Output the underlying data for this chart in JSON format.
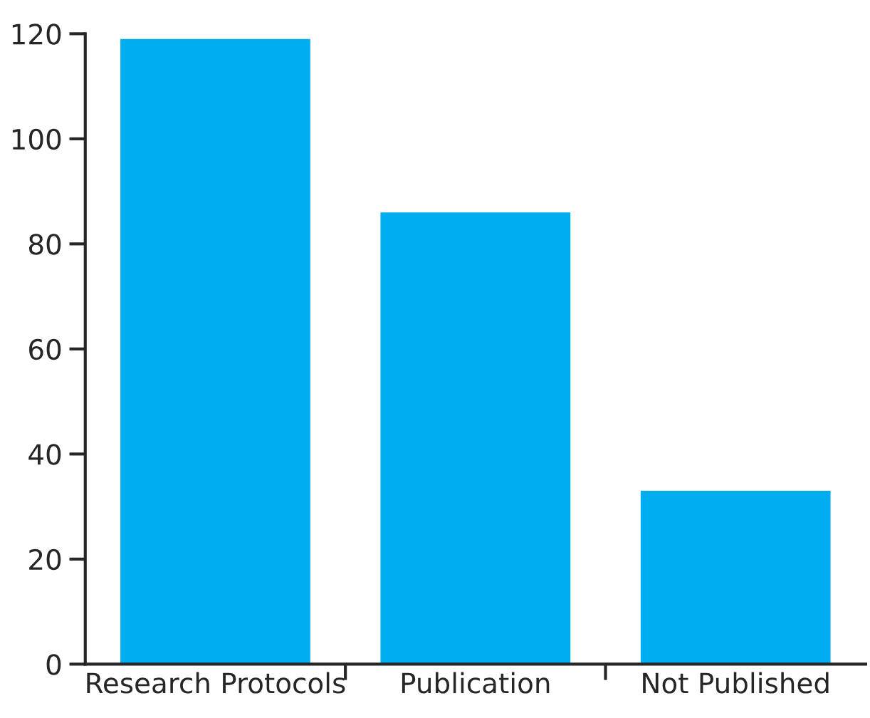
{
  "chart_data": {
    "type": "bar",
    "categories": [
      "Research Protocols",
      "Publication",
      "Not Published"
    ],
    "values": [
      119,
      86,
      33
    ],
    "color": "#00aeef",
    "ylim": [
      0,
      120
    ],
    "yticks": [
      0,
      20,
      40,
      60,
      80,
      100,
      120
    ],
    "grid": false
  }
}
